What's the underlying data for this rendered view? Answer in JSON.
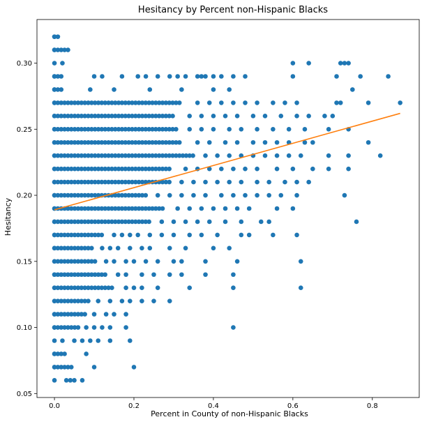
{
  "chart_data": {
    "type": "scatter",
    "title": "Hesitancy by Percent non-Hispanic Blacks",
    "xlabel": "Percent in County of non-Hispanic Blacks",
    "ylabel": "Hesitancy",
    "xlim": [
      -0.044,
      0.918
    ],
    "ylim": [
      0.047,
      0.333
    ],
    "xticks": [
      0.0,
      0.2,
      0.4,
      0.6,
      0.8
    ],
    "xtick_labels": [
      "0.0",
      "0.2",
      "0.4",
      "0.6",
      "0.8"
    ],
    "yticks": [
      0.05,
      0.1,
      0.15,
      0.2,
      0.25,
      0.3
    ],
    "ytick_labels": [
      "0.05",
      "0.10",
      "0.15",
      "0.20",
      "0.25",
      "0.30"
    ],
    "grid": false,
    "legend": "none",
    "point_color": "#1f77b4",
    "line_color": "#ff7f0e",
    "bands": [
      {
        "y": 0.32,
        "dense_max": 0.01,
        "sparse": []
      },
      {
        "y": 0.31,
        "dense_max": 0.04,
        "sparse": []
      },
      {
        "y": 0.3,
        "dense_max": 0.0,
        "sparse": [
          0.02,
          0.6,
          0.64,
          0.72,
          0.73,
          0.74
        ]
      },
      {
        "y": 0.29,
        "dense_max": 0.025,
        "sparse": [
          0.1,
          0.12,
          0.17,
          0.21,
          0.23,
          0.26,
          0.29,
          0.31,
          0.33,
          0.36,
          0.37,
          0.38,
          0.4,
          0.42,
          0.45,
          0.48,
          0.6,
          0.71,
          0.77,
          0.84
        ]
      },
      {
        "y": 0.28,
        "dense_max": 0.025,
        "sparse": [
          0.09,
          0.15,
          0.24,
          0.32,
          0.4,
          0.44,
          0.75
        ]
      },
      {
        "y": 0.27,
        "dense_max": 0.32,
        "sparse": [
          0.36,
          0.39,
          0.42,
          0.45,
          0.48,
          0.51,
          0.55,
          0.58,
          0.61,
          0.71,
          0.72,
          0.79,
          0.87
        ]
      },
      {
        "y": 0.26,
        "dense_max": 0.3,
        "sparse": [
          0.34,
          0.37,
          0.4,
          0.43,
          0.46,
          0.5,
          0.53,
          0.57,
          0.61,
          0.64,
          0.68,
          0.7
        ]
      },
      {
        "y": 0.25,
        "dense_max": 0.31,
        "sparse": [
          0.34,
          0.37,
          0.4,
          0.44,
          0.47,
          0.51,
          0.55,
          0.59,
          0.63,
          0.69,
          0.74
        ]
      },
      {
        "y": 0.24,
        "dense_max": 0.32,
        "sparse": [
          0.36,
          0.39,
          0.43,
          0.46,
          0.5,
          0.53,
          0.56,
          0.59,
          0.63,
          0.65,
          0.79
        ]
      },
      {
        "y": 0.23,
        "dense_max": 0.35,
        "sparse": [
          0.38,
          0.41,
          0.44,
          0.47,
          0.5,
          0.53,
          0.56,
          0.59,
          0.62,
          0.69,
          0.74,
          0.82
        ]
      },
      {
        "y": 0.22,
        "dense_max": 0.29,
        "sparse": [
          0.33,
          0.36,
          0.39,
          0.42,
          0.45,
          0.48,
          0.51,
          0.56,
          0.6,
          0.65,
          0.69,
          0.74
        ]
      },
      {
        "y": 0.21,
        "dense_max": 0.29,
        "sparse": [
          0.32,
          0.35,
          0.38,
          0.41,
          0.44,
          0.47,
          0.51,
          0.54,
          0.58,
          0.61,
          0.64
        ]
      },
      {
        "y": 0.2,
        "dense_max": 0.23,
        "sparse": [
          0.26,
          0.29,
          0.32,
          0.35,
          0.38,
          0.42,
          0.45,
          0.48,
          0.51,
          0.54,
          0.57,
          0.61,
          0.73
        ]
      },
      {
        "y": 0.19,
        "dense_max": 0.28,
        "sparse": [
          0.31,
          0.34,
          0.37,
          0.4,
          0.43,
          0.46,
          0.49,
          0.56,
          0.6
        ]
      },
      {
        "y": 0.18,
        "dense_max": 0.24,
        "sparse": [
          0.27,
          0.3,
          0.33,
          0.36,
          0.39,
          0.43,
          0.47,
          0.52,
          0.54,
          0.76
        ]
      },
      {
        "y": 0.17,
        "dense_max": 0.12,
        "sparse": [
          0.15,
          0.17,
          0.19,
          0.21,
          0.24,
          0.27,
          0.3,
          0.34,
          0.37,
          0.41,
          0.47,
          0.49,
          0.55,
          0.61
        ]
      },
      {
        "y": 0.16,
        "dense_max": 0.1,
        "sparse": [
          0.12,
          0.14,
          0.16,
          0.19,
          0.22,
          0.24,
          0.29,
          0.33,
          0.4,
          0.44
        ]
      },
      {
        "y": 0.15,
        "dense_max": 0.11,
        "sparse": [
          0.13,
          0.15,
          0.18,
          0.2,
          0.23,
          0.26,
          0.3,
          0.32,
          0.38,
          0.46,
          0.62
        ]
      },
      {
        "y": 0.14,
        "dense_max": 0.13,
        "sparse": [
          0.16,
          0.18,
          0.22,
          0.25,
          0.29,
          0.32,
          0.38,
          0.45
        ]
      },
      {
        "y": 0.13,
        "dense_max": 0.15,
        "sparse": [
          0.18,
          0.2,
          0.22,
          0.26,
          0.34,
          0.45,
          0.62
        ]
      },
      {
        "y": 0.12,
        "dense_max": 0.09,
        "sparse": [
          0.11,
          0.14,
          0.17,
          0.19,
          0.22,
          0.25,
          0.29
        ]
      },
      {
        "y": 0.11,
        "dense_max": 0.08,
        "sparse": [
          0.1,
          0.13,
          0.15,
          0.18
        ]
      },
      {
        "y": 0.1,
        "dense_max": 0.06,
        "sparse": [
          0.08,
          0.1,
          0.12,
          0.14,
          0.18,
          0.45
        ]
      },
      {
        "y": 0.09,
        "dense_max": 0.0,
        "sparse": [
          0.02,
          0.05,
          0.07,
          0.09,
          0.11,
          0.14,
          0.19
        ]
      },
      {
        "y": 0.08,
        "dense_max": 0.03,
        "sparse": [
          0.08
        ]
      },
      {
        "y": 0.07,
        "dense_max": 0.05,
        "sparse": [
          0.1,
          0.2
        ]
      },
      {
        "y": 0.06,
        "dense_max": 0.0,
        "sparse": [
          0.03,
          0.04,
          0.05,
          0.07
        ]
      }
    ],
    "trend_line": {
      "x": [
        0.0,
        0.87
      ],
      "y": [
        0.189,
        0.262
      ]
    }
  }
}
